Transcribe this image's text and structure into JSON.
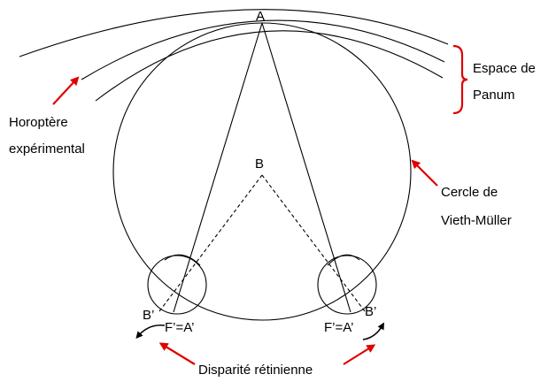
{
  "labels": {
    "point_a": "A",
    "point_b": "B",
    "espace_line1": "Espace de",
    "espace_line2": "Panum",
    "horoptere_line1": "Horoptère",
    "horoptere_line2": "expérimental",
    "cercle_line1": "Cercle de",
    "cercle_line2": "Vieth-Müller",
    "b_prime_left": "B’",
    "b_prime_right": "B’",
    "f_a_left": "F’=A’",
    "f_a_right": "F’=A’",
    "disparite": "Disparité rétinienne"
  },
  "colors": {
    "line": "#000000",
    "arrow": "#e00000"
  }
}
